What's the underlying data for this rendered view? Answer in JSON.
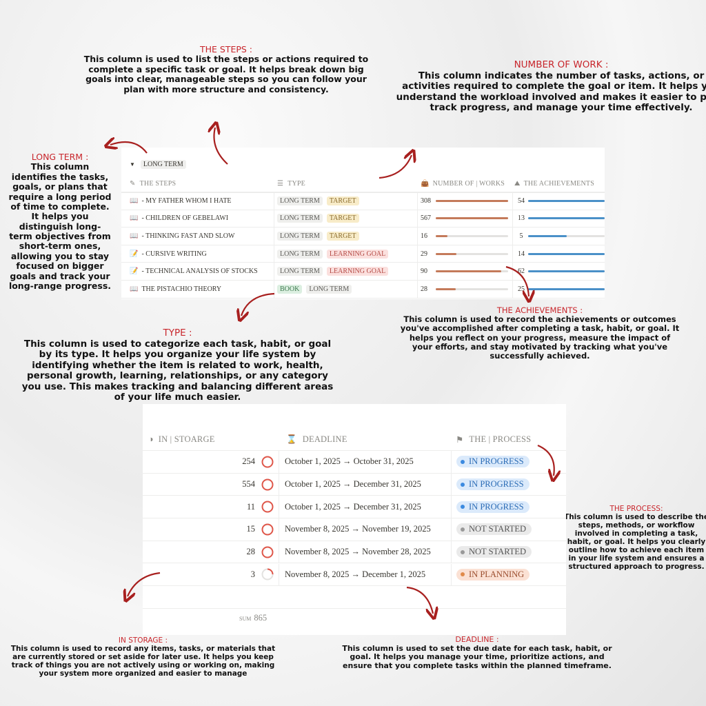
{
  "annotations": {
    "steps": {
      "title": "THE STEPS  :",
      "body": "This column is used to list the steps or actions required to complete a specific task or goal. It helps break down big goals into clear, manageable steps so you can follow your plan with more structure and consistency."
    },
    "work": {
      "title": "NUMBER OF WORK :",
      "body": "This column indicates the number of tasks, actions, or activities required to complete the goal or item. It helps you understand the workload involved and makes it easier to plan, track progress, and manage your time effectively."
    },
    "longterm": {
      "title": "LONG TERM  :",
      "body": "This column identifies the tasks, goals, or plans that require a long period of time to complete. It helps you distinguish long-term objectives from short-term ones, allowing you to stay focused on bigger goals and track your long-range progress."
    },
    "type": {
      "title": "TYPE  :",
      "body": "This column is used to categorize each task, habit, or goal by its type. It helps you organize your life system by identifying whether the item is related to work, health, personal growth, learning, relationships, or any category you use. This makes tracking and balancing different areas of your life much easier."
    },
    "achievements": {
      "title": "THE ACHIEVEMENTS :",
      "body": "This column is used to record the achievements or outcomes you've accomplished after completing a task, habit, or goal. It helps you reflect on your progress, measure the impact of your efforts, and stay motivated by tracking what you've successfully achieved."
    },
    "process": {
      "title": "THE PROCESS:",
      "body": "This column is used to describe the steps, methods, or workflow involved in completing a task, habit, or goal. It helps you clearly outline how to achieve each item in your life system and ensures a structured approach to progress."
    },
    "storage": {
      "title": "IN STORAGE :",
      "body": "This column is used to record any items, tasks, or materials that are currently stored or set aside for later use. It helps you keep track of things you are not actively using or working on, making your system more organized and easier to manage"
    },
    "deadline": {
      "title": "DEADLINE :",
      "body": "This column is used to set the due date for each task, habit, or goal. It helps you manage your time, prioritize actions, and ensure that you complete tasks within the planned timeframe."
    }
  },
  "top_table": {
    "group": "LONG TERM",
    "headers": {
      "steps": "THE STEPS",
      "type": "TYPE",
      "works": "NUMBER OF | WORKS",
      "achievements": "THE ACHIEVEMENTS"
    },
    "rows": [
      {
        "icon": "book",
        "step": "- MY FATHER WHOM I HATE",
        "tags": [
          {
            "label": "LONG TERM",
            "color": "gray"
          },
          {
            "label": "TARGET",
            "color": "yellow"
          }
        ],
        "works": 308,
        "works_progress": 1.0,
        "achievements": 54,
        "achievements_progress": 1.0
      },
      {
        "icon": "book",
        "step": "- CHILDREN OF GEBELAWI",
        "tags": [
          {
            "label": "LONG TERM",
            "color": "gray"
          },
          {
            "label": "TARGET",
            "color": "yellow"
          }
        ],
        "works": 567,
        "works_progress": 1.0,
        "achievements": 13,
        "achievements_progress": 1.0
      },
      {
        "icon": "book",
        "step": "- THINKING FAST AND SLOW",
        "tags": [
          {
            "label": "LONG TERM",
            "color": "gray"
          },
          {
            "label": "TARGET",
            "color": "yellow"
          }
        ],
        "works": 16,
        "works_progress": 0.16,
        "achievements": 5,
        "achievements_progress": 0.5
      },
      {
        "icon": "memo",
        "step": "- CURSIVE WRITING",
        "tags": [
          {
            "label": "LONG TERM",
            "color": "gray"
          },
          {
            "label": "LEARNING GOAL",
            "color": "red"
          }
        ],
        "works": 29,
        "works_progress": 0.29,
        "achievements": 14,
        "achievements_progress": 1.0
      },
      {
        "icon": "memo",
        "step": "- TECHNICAL ANALYSIS OF STOCKS",
        "tags": [
          {
            "label": "LONG TERM",
            "color": "gray"
          },
          {
            "label": "LEARNING GOAL",
            "color": "red"
          }
        ],
        "works": 90,
        "works_progress": 0.9,
        "achievements": 62,
        "achievements_progress": 1.0
      },
      {
        "icon": "book",
        "step": "THE PISTACHIO THEORY",
        "tags": [
          {
            "label": "BOOK",
            "color": "green"
          },
          {
            "label": "LONG TERM",
            "color": "gray"
          }
        ],
        "works": 28,
        "works_progress": 0.28,
        "achievements": 25,
        "achievements_progress": 1.0
      }
    ]
  },
  "bottom_table": {
    "headers": {
      "storage": "IN | STOARGE",
      "deadline": "DEADLINE",
      "process": "THE | PROCESS"
    },
    "rows": [
      {
        "storage": 254,
        "ring": 1.0,
        "deadline": "October 1, 2025 → October 31, 2025",
        "status": "IN PROGRESS",
        "status_color": "blue"
      },
      {
        "storage": 554,
        "ring": 1.0,
        "deadline": "October 1, 2025 → December 31, 2025",
        "status": "IN PROGRESS",
        "status_color": "blue"
      },
      {
        "storage": 11,
        "ring": 1.0,
        "deadline": "October 1, 2025 → December 31, 2025",
        "status": "IN PROGRESS",
        "status_color": "blue"
      },
      {
        "storage": 15,
        "ring": 1.0,
        "deadline": "November 8, 2025 → November 19, 2025",
        "status": "NOT STARTED",
        "status_color": "gray"
      },
      {
        "storage": 28,
        "ring": 1.0,
        "deadline": "November 8, 2025 → November 28, 2025",
        "status": "NOT STARTED",
        "status_color": "gray"
      },
      {
        "storage": 3,
        "ring": 0.25,
        "deadline": "November 8, 2025 → December 1, 2025",
        "status": "IN PLANNING",
        "status_color": "orange"
      }
    ],
    "sum_label": "SUM",
    "sum_value": "865"
  },
  "colors": {
    "accent": "#c8262c",
    "works_bar": "#c47a5a",
    "achievements_bar": "#4a90c8"
  }
}
